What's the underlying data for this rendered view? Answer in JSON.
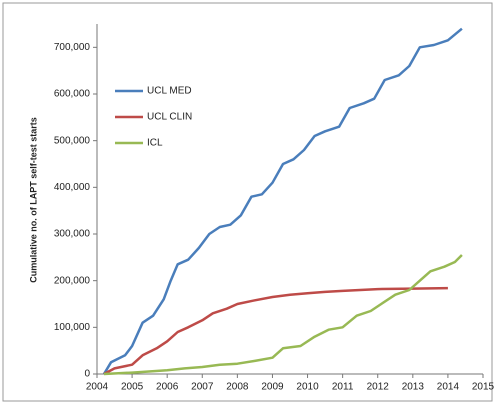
{
  "chart_data": {
    "type": "line",
    "y_label": "Cumulative no. of LAPT self-test starts",
    "xlim": [
      2004,
      2015
    ],
    "xticks": [
      2004,
      2005,
      2006,
      2007,
      2008,
      2009,
      2010,
      2011,
      2012,
      2013,
      2014,
      2015
    ],
    "ylim": [
      0,
      750000
    ],
    "yticks": [
      0,
      {
        "value": 100000,
        "label": "100,000"
      },
      {
        "value": 200000,
        "label": "200,000"
      },
      {
        "value": 300000,
        "label": "300,000"
      },
      {
        "value": 400000,
        "label": "400,000"
      },
      {
        "value": 500000,
        "label": "500,000"
      },
      {
        "value": 600000,
        "label": "600,000"
      },
      {
        "value": 700000,
        "label": "700,000"
      }
    ],
    "grid": false,
    "legend": "upper left",
    "series": [
      {
        "name": "UCL MED",
        "color": "#4a7ebb",
        "x": [
          2004.2,
          2004.4,
          2004.8,
          2005.0,
          2005.3,
          2005.6,
          2005.9,
          2006.1,
          2006.3,
          2006.6,
          2006.9,
          2007.2,
          2007.5,
          2007.8,
          2008.1,
          2008.4,
          2008.7,
          2009.0,
          2009.3,
          2009.6,
          2009.9,
          2010.2,
          2010.5,
          2010.9,
          2011.2,
          2011.6,
          2011.9,
          2012.2,
          2012.6,
          2012.9,
          2013.2,
          2013.6,
          2014.0,
          2014.4
        ],
        "values": [
          0,
          25000,
          40000,
          60000,
          110000,
          125000,
          160000,
          200000,
          235000,
          245000,
          270000,
          300000,
          315000,
          320000,
          340000,
          380000,
          385000,
          410000,
          450000,
          460000,
          480000,
          510000,
          520000,
          530000,
          570000,
          580000,
          590000,
          630000,
          640000,
          660000,
          700000,
          705000,
          715000,
          740000
        ]
      },
      {
        "name": "UCL CLIN",
        "color": "#be4b48",
        "x": [
          2004.2,
          2004.5,
          2005.0,
          2005.3,
          2005.7,
          2006.0,
          2006.3,
          2006.6,
          2007.0,
          2007.3,
          2007.7,
          2008.0,
          2008.5,
          2009.0,
          2009.5,
          2010.0,
          2010.5,
          2011.0,
          2011.5,
          2012.0,
          2013.0,
          2014.0
        ],
        "values": [
          0,
          12000,
          20000,
          40000,
          55000,
          70000,
          90000,
          100000,
          115000,
          130000,
          140000,
          150000,
          158000,
          165000,
          170000,
          173000,
          176000,
          178000,
          180000,
          182000,
          183000,
          184000
        ]
      },
      {
        "name": "ICL",
        "color": "#98b954",
        "x": [
          2004.2,
          2005.0,
          2006.0,
          2006.5,
          2007.0,
          2007.5,
          2008.0,
          2008.5,
          2009.0,
          2009.3,
          2009.8,
          2010.2,
          2010.6,
          2011.0,
          2011.4,
          2011.8,
          2012.1,
          2012.5,
          2012.9,
          2013.2,
          2013.5,
          2013.9,
          2014.2,
          2014.4
        ],
        "values": [
          0,
          3000,
          8000,
          12000,
          15000,
          20000,
          22000,
          28000,
          35000,
          55000,
          60000,
          80000,
          95000,
          100000,
          125000,
          135000,
          150000,
          170000,
          180000,
          200000,
          220000,
          230000,
          240000,
          255000
        ]
      }
    ]
  }
}
